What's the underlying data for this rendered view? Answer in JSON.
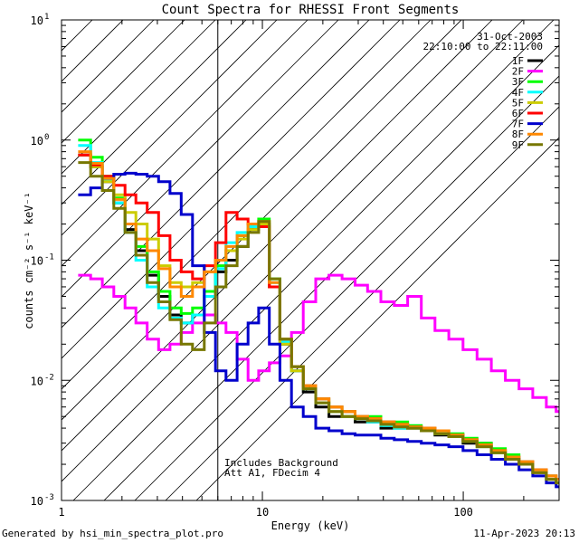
{
  "chart_data": {
    "type": "line",
    "title": "Count Spectra for RHESSI Front Segments",
    "xlabel": "Energy (keV)",
    "ylabel": "counts cm⁻² s⁻¹ keV⁻¹",
    "xscale": "log",
    "yscale": "log",
    "xlim": [
      1,
      300
    ],
    "ylim": [
      0.001,
      10
    ],
    "x_ticks": [
      {
        "value": 1,
        "label": "1"
      },
      {
        "value": 10,
        "label": "10"
      },
      {
        "value": 100,
        "label": "100"
      }
    ],
    "y_ticks": [
      {
        "value": 0.001,
        "label": "10",
        "exp": "-3"
      },
      {
        "value": 0.01,
        "label": "10",
        "exp": "-2"
      },
      {
        "value": 0.1,
        "label": "10",
        "exp": "-1"
      },
      {
        "value": 1,
        "label": "10",
        "exp": "0"
      },
      {
        "value": 10,
        "label": "10",
        "exp": "1"
      }
    ],
    "hatched_region": {
      "x_from": 1,
      "x_to": 6
    },
    "date": "31-Oct-2003",
    "time_range": "22:10:00 to 22:11:00",
    "annotations": [
      "Includes Background",
      "Att A1, FDecim 4"
    ],
    "series": [
      {
        "name": "1F",
        "color": "#000000",
        "x": [
          1.3,
          1.5,
          1.7,
          1.95,
          2.2,
          2.5,
          2.85,
          3.25,
          3.7,
          4.2,
          4.8,
          5.5,
          6.2,
          7,
          8,
          9,
          10.2,
          11.5,
          13,
          15,
          17,
          20,
          23,
          27,
          31,
          36,
          42,
          49,
          57,
          67,
          78,
          92,
          108,
          127,
          150,
          175,
          205,
          240,
          280,
          300
        ],
        "y": [
          0.75,
          0.6,
          0.45,
          0.3,
          0.18,
          0.12,
          0.075,
          0.05,
          0.035,
          0.03,
          0.035,
          0.05,
          0.08,
          0.1,
          0.13,
          0.18,
          0.2,
          0.06,
          0.02,
          0.012,
          0.008,
          0.006,
          0.005,
          0.005,
          0.0045,
          0.0045,
          0.004,
          0.004,
          0.004,
          0.0038,
          0.0035,
          0.0035,
          0.003,
          0.003,
          0.0025,
          0.0022,
          0.002,
          0.0017,
          0.0015,
          0.0014
        ]
      },
      {
        "name": "2F",
        "color": "#ff00ff",
        "x": [
          1.3,
          1.5,
          1.7,
          1.95,
          2.2,
          2.5,
          2.85,
          3.25,
          3.7,
          4.2,
          4.8,
          5.5,
          6.2,
          7,
          8,
          9,
          10.2,
          11.5,
          13,
          15,
          17,
          20,
          23,
          27,
          31,
          36,
          42,
          49,
          57,
          67,
          78,
          92,
          108,
          127,
          150,
          175,
          205,
          240,
          280,
          300
        ],
        "y": [
          0.075,
          0.07,
          0.06,
          0.05,
          0.04,
          0.03,
          0.022,
          0.018,
          0.02,
          0.025,
          0.03,
          0.035,
          0.03,
          0.025,
          0.015,
          0.01,
          0.012,
          0.014,
          0.016,
          0.025,
          0.045,
          0.07,
          0.075,
          0.07,
          0.062,
          0.055,
          0.045,
          0.042,
          0.05,
          0.033,
          0.026,
          0.022,
          0.018,
          0.015,
          0.012,
          0.01,
          0.0085,
          0.0072,
          0.006,
          0.0055
        ]
      },
      {
        "name": "3F",
        "color": "#00ff00",
        "x": [
          1.3,
          1.5,
          1.7,
          1.95,
          2.2,
          2.5,
          2.85,
          3.25,
          3.7,
          4.2,
          4.8,
          5.5,
          6.2,
          7,
          8,
          9,
          10.2,
          11.5,
          13,
          15,
          17,
          20,
          23,
          27,
          31,
          36,
          42,
          49,
          57,
          67,
          78,
          92,
          108,
          127,
          150,
          175,
          205,
          240,
          280,
          300
        ],
        "y": [
          1.0,
          0.72,
          0.5,
          0.33,
          0.2,
          0.13,
          0.08,
          0.055,
          0.04,
          0.036,
          0.04,
          0.055,
          0.09,
          0.12,
          0.16,
          0.2,
          0.22,
          0.07,
          0.022,
          0.013,
          0.009,
          0.007,
          0.006,
          0.0055,
          0.005,
          0.005,
          0.0045,
          0.0045,
          0.0042,
          0.004,
          0.0038,
          0.0036,
          0.0033,
          0.003,
          0.0027,
          0.0024,
          0.0021,
          0.0018,
          0.0016,
          0.0015
        ]
      },
      {
        "name": "4F",
        "color": "#00ffff",
        "x": [
          1.3,
          1.5,
          1.7,
          1.95,
          2.2,
          2.5,
          2.85,
          3.25,
          3.7,
          4.2,
          4.8,
          5.5,
          6.2,
          7,
          8,
          9,
          10.2,
          11.5,
          13,
          15,
          17,
          20,
          23,
          27,
          31,
          36,
          42,
          49,
          57,
          67,
          78,
          92,
          108,
          127,
          150,
          175,
          205,
          240,
          280,
          300
        ],
        "y": [
          0.9,
          0.65,
          0.46,
          0.3,
          0.17,
          0.1,
          0.06,
          0.04,
          0.033,
          0.03,
          0.035,
          0.05,
          0.085,
          0.14,
          0.17,
          0.19,
          0.2,
          0.065,
          0.021,
          0.012,
          0.0085,
          0.0065,
          0.0055,
          0.005,
          0.0048,
          0.0045,
          0.0042,
          0.004,
          0.004,
          0.0038,
          0.0036,
          0.0034,
          0.0031,
          0.0028,
          0.0025,
          0.0022,
          0.002,
          0.0017,
          0.0015,
          0.0014
        ]
      },
      {
        "name": "5F",
        "color": "#cccc00",
        "x": [
          1.3,
          1.5,
          1.7,
          1.95,
          2.2,
          2.5,
          2.85,
          3.25,
          3.7,
          4.2,
          4.8,
          5.5,
          6.2,
          7,
          8,
          9,
          10.2,
          11.5,
          13,
          15,
          17,
          20,
          23,
          27,
          31,
          36,
          42,
          49,
          57,
          67,
          78,
          92,
          108,
          127,
          150,
          175,
          205,
          240,
          280,
          300
        ],
        "y": [
          0.75,
          0.6,
          0.45,
          0.35,
          0.25,
          0.2,
          0.15,
          0.09,
          0.065,
          0.06,
          0.065,
          0.08,
          0.1,
          0.12,
          0.15,
          0.18,
          0.2,
          0.06,
          0.02,
          0.012,
          0.0085,
          0.0065,
          0.0055,
          0.005,
          0.0048,
          0.0046,
          0.0043,
          0.0041,
          0.004,
          0.0038,
          0.0036,
          0.0034,
          0.0031,
          0.0028,
          0.0025,
          0.0022,
          0.002,
          0.0017,
          0.0015,
          0.0014
        ]
      },
      {
        "name": "6F",
        "color": "#ff0000",
        "x": [
          1.3,
          1.5,
          1.7,
          1.95,
          2.2,
          2.5,
          2.85,
          3.25,
          3.7,
          4.2,
          4.8,
          5.5,
          6.2,
          7,
          8,
          9,
          10.2,
          11.5,
          13,
          15,
          17,
          20,
          23,
          27,
          31,
          36,
          42,
          49,
          57,
          67,
          78,
          92,
          108,
          127,
          150,
          175,
          205,
          240,
          280,
          300
        ],
        "y": [
          0.75,
          0.62,
          0.5,
          0.42,
          0.35,
          0.3,
          0.25,
          0.16,
          0.1,
          0.08,
          0.07,
          0.09,
          0.14,
          0.25,
          0.22,
          0.2,
          0.19,
          0.06,
          0.022,
          0.013,
          0.009,
          0.007,
          0.006,
          0.0055,
          0.005,
          0.0048,
          0.0045,
          0.0043,
          0.0041,
          0.004,
          0.0038,
          0.0035,
          0.0032,
          0.0029,
          0.0026,
          0.0023,
          0.0021,
          0.0018,
          0.0016,
          0.0015
        ]
      },
      {
        "name": "7F",
        "color": "#0000cc",
        "x": [
          1.3,
          1.5,
          1.7,
          1.95,
          2.2,
          2.5,
          2.85,
          3.25,
          3.7,
          4.2,
          4.8,
          5.5,
          6.2,
          7,
          8,
          9,
          10.2,
          11.5,
          13,
          15,
          17,
          20,
          23,
          27,
          31,
          36,
          42,
          49,
          57,
          67,
          78,
          92,
          108,
          127,
          150,
          175,
          205,
          240,
          280,
          300
        ],
        "y": [
          0.35,
          0.4,
          0.48,
          0.52,
          0.53,
          0.52,
          0.5,
          0.45,
          0.36,
          0.24,
          0.09,
          0.025,
          0.012,
          0.01,
          0.02,
          0.03,
          0.04,
          0.02,
          0.01,
          0.006,
          0.005,
          0.004,
          0.0038,
          0.0036,
          0.0035,
          0.0035,
          0.0033,
          0.0032,
          0.0031,
          0.003,
          0.0029,
          0.0028,
          0.0026,
          0.0024,
          0.0022,
          0.002,
          0.0018,
          0.0016,
          0.0014,
          0.0013
        ]
      },
      {
        "name": "8F",
        "color": "#ff8800",
        "x": [
          1.3,
          1.5,
          1.7,
          1.95,
          2.2,
          2.5,
          2.85,
          3.25,
          3.7,
          4.2,
          4.8,
          5.5,
          6.2,
          7,
          8,
          9,
          10.2,
          11.5,
          13,
          15,
          17,
          20,
          23,
          27,
          31,
          36,
          42,
          49,
          57,
          67,
          78,
          92,
          108,
          127,
          150,
          175,
          205,
          240,
          280,
          300
        ],
        "y": [
          0.8,
          0.64,
          0.48,
          0.32,
          0.2,
          0.15,
          0.12,
          0.085,
          0.06,
          0.05,
          0.06,
          0.08,
          0.1,
          0.13,
          0.16,
          0.2,
          0.21,
          0.065,
          0.022,
          0.013,
          0.009,
          0.007,
          0.006,
          0.0055,
          0.005,
          0.0048,
          0.0045,
          0.0043,
          0.0041,
          0.004,
          0.0038,
          0.0035,
          0.0032,
          0.0029,
          0.0026,
          0.0023,
          0.0021,
          0.0018,
          0.0016,
          0.0015
        ]
      },
      {
        "name": "9F",
        "color": "#777700",
        "x": [
          1.3,
          1.5,
          1.7,
          1.95,
          2.2,
          2.5,
          2.85,
          3.25,
          3.7,
          4.2,
          4.8,
          5.5,
          6.2,
          7,
          8,
          9,
          10.2,
          11.5,
          13,
          15,
          17,
          20,
          23,
          27,
          31,
          36,
          42,
          49,
          57,
          67,
          78,
          92,
          108,
          127,
          150,
          175,
          205,
          240,
          280,
          300
        ],
        "y": [
          0.65,
          0.5,
          0.38,
          0.27,
          0.17,
          0.11,
          0.065,
          0.045,
          0.032,
          0.02,
          0.018,
          0.03,
          0.06,
          0.09,
          0.13,
          0.17,
          0.21,
          0.07,
          0.022,
          0.013,
          0.0085,
          0.0065,
          0.0055,
          0.005,
          0.0048,
          0.0046,
          0.0043,
          0.0041,
          0.004,
          0.0038,
          0.0036,
          0.0034,
          0.0031,
          0.0028,
          0.0025,
          0.0022,
          0.002,
          0.0017,
          0.0015,
          0.0014
        ]
      }
    ]
  },
  "footer": {
    "left": "Generated by hsi_min_spectra_plot.pro",
    "right": "11-Apr-2023 20:13"
  }
}
